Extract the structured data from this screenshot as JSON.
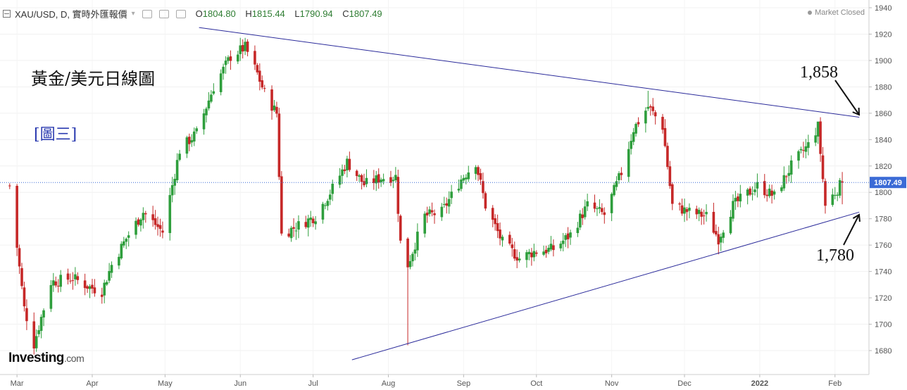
{
  "header": {
    "symbol": "XAU/USD, D, 實時外匯報價",
    "ohlc": [
      {
        "k": "O",
        "v": "1804.80"
      },
      {
        "k": "H",
        "v": "1815.44"
      },
      {
        "k": "L",
        "v": "1790.94"
      },
      {
        "k": "C",
        "v": "1807.49"
      }
    ],
    "market_status": "Market Closed"
  },
  "overlay": {
    "title": "黃金/美元日線圖",
    "figure_label": "[圖三]",
    "resistance_label": "1,858",
    "support_label": "1,780",
    "logo_main": "Investing",
    "logo_suffix": ".com"
  },
  "chart_data": {
    "type": "candlestick",
    "y_axis_ticks": [
      1680,
      1700,
      1720,
      1740,
      1760,
      1780,
      1800,
      1820,
      1840,
      1860,
      1880,
      1900,
      1920,
      1940
    ],
    "ylim": [
      1660,
      1945
    ],
    "x_axis_ticks": [
      "Mar",
      "Apr",
      "May",
      "Jun",
      "Jul",
      "Aug",
      "Sep",
      "Oct",
      "Nov",
      "Dec",
      "2022",
      "Feb"
    ],
    "last_price": 1807.49,
    "last_price_label": "1807.49",
    "trendlines": [
      {
        "name": "resistance",
        "from": {
          "date": "2021-05-15",
          "price": 1925
        },
        "to": {
          "date": "2022-02-11",
          "price": 1857
        }
      },
      {
        "name": "support",
        "from": {
          "date": "2021-07-17",
          "price": 1673
        },
        "to": {
          "date": "2022-02-11",
          "price": 1785
        }
      }
    ],
    "colors": {
      "up": "#2e9e3c",
      "down": "#c62828",
      "trendline": "#2a2a9a",
      "price_line": "#3b6bd6",
      "price_label_bg": "#3b6bd6"
    },
    "close_path": [
      [
        "2021-02-26",
        1805
      ],
      [
        "2021-03-04",
        1712
      ],
      [
        "2021-03-08",
        1685
      ],
      [
        "2021-03-15",
        1732
      ],
      [
        "2021-03-24",
        1735
      ],
      [
        "2021-03-31",
        1728
      ],
      [
        "2021-04-05",
        1725
      ],
      [
        "2021-04-09",
        1745
      ],
      [
        "2021-04-15",
        1765
      ],
      [
        "2021-04-22",
        1785
      ],
      [
        "2021-04-30",
        1770
      ],
      [
        "2021-05-07",
        1832
      ],
      [
        "2021-05-14",
        1845
      ],
      [
        "2021-05-21",
        1880
      ],
      [
        "2021-05-28",
        1903
      ],
      [
        "2021-06-03",
        1910
      ],
      [
        "2021-06-08",
        1890
      ],
      [
        "2021-06-11",
        1875
      ],
      [
        "2021-06-16",
        1860
      ],
      [
        "2021-06-18",
        1768
      ],
      [
        "2021-06-25",
        1775
      ],
      [
        "2021-07-02",
        1782
      ],
      [
        "2021-07-09",
        1803
      ],
      [
        "2021-07-15",
        1823
      ],
      [
        "2021-07-22",
        1806
      ],
      [
        "2021-07-29",
        1811
      ],
      [
        "2021-08-04",
        1812
      ],
      [
        "2021-08-06",
        1762
      ],
      [
        "2021-08-09",
        1745
      ],
      [
        "2021-08-16",
        1782
      ],
      [
        "2021-08-23",
        1785
      ],
      [
        "2021-08-31",
        1810
      ],
      [
        "2021-09-06",
        1823
      ],
      [
        "2021-09-10",
        1790
      ],
      [
        "2021-09-17",
        1762
      ],
      [
        "2021-09-24",
        1750
      ],
      [
        "2021-09-30",
        1755
      ],
      [
        "2021-10-08",
        1757
      ],
      [
        "2021-10-15",
        1768
      ],
      [
        "2021-10-22",
        1790
      ],
      [
        "2021-10-29",
        1783
      ],
      [
        "2021-11-05",
        1815
      ],
      [
        "2021-11-10",
        1848
      ],
      [
        "2021-11-16",
        1865
      ],
      [
        "2021-11-22",
        1850
      ],
      [
        "2021-11-26",
        1790
      ],
      [
        "2021-12-03",
        1785
      ],
      [
        "2021-12-10",
        1782
      ],
      [
        "2021-12-15",
        1765
      ],
      [
        "2021-12-21",
        1790
      ],
      [
        "2021-12-31",
        1805
      ],
      [
        "2022-01-07",
        1797
      ],
      [
        "2022-01-14",
        1820
      ],
      [
        "2022-01-21",
        1836
      ],
      [
        "2022-01-25",
        1850
      ],
      [
        "2022-01-28",
        1790
      ],
      [
        "2022-02-04",
        1807.49
      ]
    ],
    "spikes": [
      {
        "date": "2021-03-08",
        "low": 1677
      },
      {
        "date": "2021-06-02",
        "high": 1916
      },
      {
        "date": "2021-08-09",
        "low": 1684
      },
      {
        "date": "2021-11-16",
        "high": 1877
      },
      {
        "date": "2021-12-15",
        "low": 1753
      },
      {
        "date": "2022-01-25",
        "high": 1853
      }
    ]
  }
}
